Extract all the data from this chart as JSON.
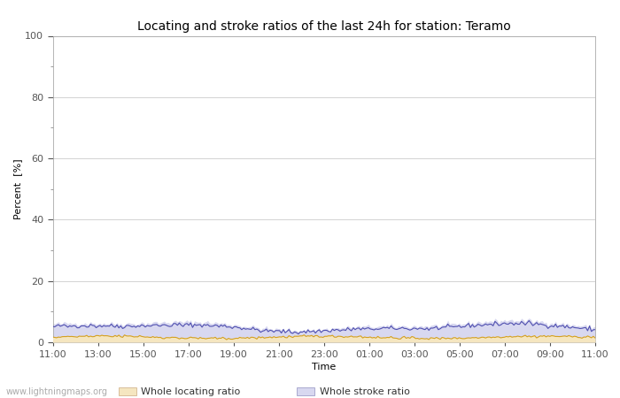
{
  "title": "Locating and stroke ratios of the last 24h for station: Teramo",
  "xlabel": "Time",
  "ylabel": "Percent  [%]",
  "xlim": [
    0,
    24
  ],
  "ylim": [
    0,
    100
  ],
  "yticks_major": [
    0,
    20,
    40,
    60,
    80,
    100
  ],
  "yticks_minor": [
    10,
    30,
    50,
    70,
    90
  ],
  "xtick_labels": [
    "11:00",
    "13:00",
    "15:00",
    "17:00",
    "19:00",
    "21:00",
    "23:00",
    "01:00",
    "03:00",
    "05:00",
    "07:00",
    "09:00",
    "11:00"
  ],
  "background_color": "#ffffff",
  "plot_bg_color": "#ffffff",
  "grid_color": "#cccccc",
  "watermark": "www.lightningmaps.org",
  "whole_locating_color": "#f5e6c0",
  "whole_stroke_color": "#d8d8f0",
  "locating_station_color": "#d4a020",
  "stroke_station_color": "#5050b0",
  "title_fontsize": 10,
  "label_fontsize": 8,
  "tick_fontsize": 8,
  "legend_fontsize": 8
}
